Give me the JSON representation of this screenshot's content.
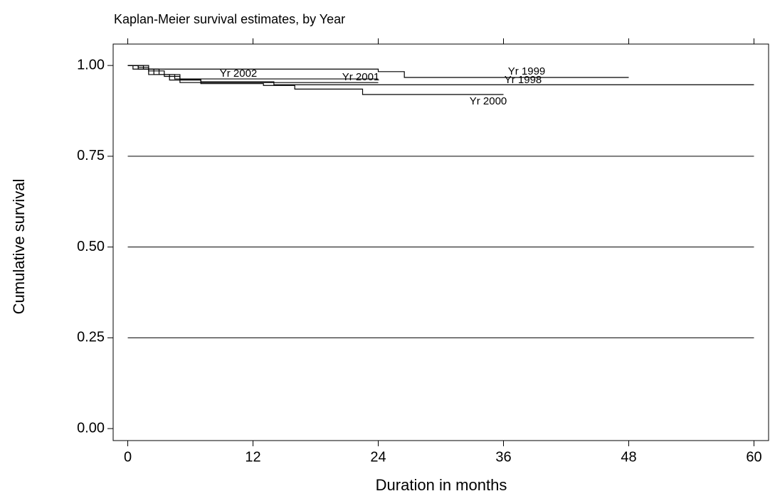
{
  "chart_data": {
    "type": "step",
    "title": "Kaplan-Meier survival estimates, by Year",
    "x_label": "Duration in months",
    "y_label": "Cumulative survival",
    "xlim": [
      -1.4,
      61.4
    ],
    "xticks": [
      0,
      12,
      24,
      36,
      48,
      60
    ],
    "ylim": [
      -0.033,
      1.059
    ],
    "yticks": [
      {
        "value": 0,
        "label": "0.00"
      },
      0.25,
      {
        "value": 0.5,
        "label": "0.50"
      },
      0.75,
      {
        "value": 1,
        "label": "1.00"
      }
    ],
    "grid": true,
    "series": [
      {
        "name": "Yr 1998",
        "color": "#000000",
        "x": [
          0,
          1.5,
          3,
          5,
          7,
          14,
          60
        ],
        "values": [
          1.0,
          0.99,
          0.975,
          0.962,
          0.955,
          0.947,
          0.947
        ]
      },
      {
        "name": "Yr 1999",
        "color": "#000000",
        "x": [
          0,
          1,
          2,
          24,
          26.5,
          48
        ],
        "values": [
          1.0,
          0.995,
          0.99,
          0.983,
          0.967,
          0.967
        ]
      },
      {
        "name": "Yr 2000",
        "color": "#000000",
        "x": [
          0,
          1,
          2.5,
          4,
          7,
          13,
          16,
          22.5,
          36
        ],
        "values": [
          1.0,
          0.99,
          0.975,
          0.96,
          0.95,
          0.945,
          0.935,
          0.92,
          0.92
        ]
      },
      {
        "name": "Yr 2001",
        "color": "#000000",
        "x": [
          0,
          2,
          3.5,
          5,
          24
        ],
        "values": [
          1.0,
          0.985,
          0.97,
          0.953,
          0.953
        ]
      },
      {
        "name": "Yr 2002",
        "color": "#000000",
        "x": [
          0,
          0.5,
          2,
          4.5,
          24
        ],
        "values": [
          1.0,
          0.99,
          0.975,
          0.963,
          0.963
        ]
      }
    ]
  }
}
